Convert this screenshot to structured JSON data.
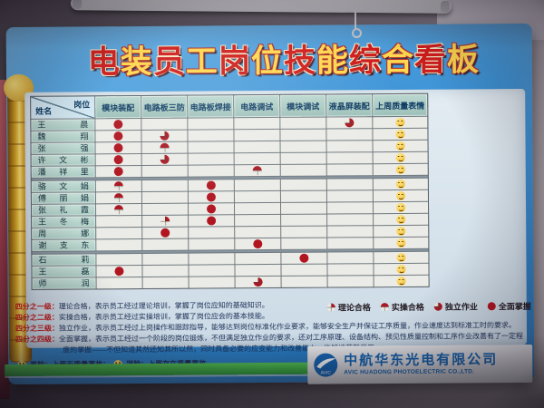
{
  "board": {
    "title": "电装员工岗位技能综合看板",
    "table": {
      "corner": {
        "top": "岗位",
        "bottom": "姓名"
      },
      "columns": [
        "模块装配",
        "电路板三防",
        "电路板焊接",
        "电路调试",
        "模块调试",
        "液晶屏装配",
        "上周质量表情"
      ],
      "rows": [
        {
          "name": "王晨",
          "skills": [
            4,
            0,
            0,
            0,
            0,
            3
          ],
          "mood": "smile"
        },
        {
          "name": "魏翔",
          "skills": [
            4,
            3,
            0,
            0,
            0,
            0
          ],
          "mood": "smile"
        },
        {
          "name": "张强",
          "skills": [
            4,
            2,
            0,
            0,
            0,
            0
          ],
          "mood": "smile"
        },
        {
          "name": "许文彬",
          "skills": [
            4,
            3,
            0,
            0,
            0,
            0
          ],
          "mood": "smile"
        },
        {
          "name": "潘祥里",
          "skills": [
            4,
            0,
            0,
            2,
            0,
            0
          ],
          "mood": "smile"
        },
        {
          "name": "骆文娟",
          "skills": [
            2,
            0,
            4,
            0,
            0,
            0
          ],
          "mood": "smile"
        },
        {
          "name": "傅丽娟",
          "skills": [
            2,
            0,
            4,
            0,
            0,
            0
          ],
          "mood": "smile"
        },
        {
          "name": "张礼霞",
          "skills": [
            2,
            0,
            4,
            0,
            0,
            0
          ],
          "mood": "smile"
        },
        {
          "name": "王冬梅",
          "skills": [
            0,
            1,
            4,
            0,
            0,
            0
          ],
          "mood": "smile"
        },
        {
          "name": "周娜",
          "skills": [
            0,
            4,
            0,
            0,
            0,
            0
          ],
          "mood": "smile"
        },
        {
          "name": "谢支东",
          "skills": [
            0,
            0,
            0,
            4,
            0,
            0
          ],
          "mood": "smile"
        },
        {
          "name": "石莉",
          "skills": [
            0,
            0,
            0,
            0,
            4,
            0
          ],
          "mood": "smile"
        },
        {
          "name": "王磊",
          "skills": [
            4,
            0,
            0,
            0,
            0,
            0
          ],
          "mood": "smile"
        },
        {
          "name": "师润",
          "skills": [
            0,
            0,
            0,
            3,
            0,
            0
          ],
          "mood": "smile"
        }
      ]
    },
    "legend": [
      {
        "level": 1,
        "label": "理论合格"
      },
      {
        "level": 2,
        "label": "实操合格"
      },
      {
        "level": 3,
        "label": "独立作业"
      },
      {
        "level": 4,
        "label": "全面掌握"
      }
    ],
    "notes": [
      {
        "label": "四分之一级：",
        "text": "理论合格，表示员工经过理论培训，掌握了岗位应知的基础知识。"
      },
      {
        "label": "四分之二级：",
        "text": "实操合格，表示员工经过实操培训，掌握了岗位应会的基本技能。"
      },
      {
        "label": "四分之三级：",
        "text": "独立作业，表示员工经过上岗操作和跟踪指导，能够达到岗位标准化作业要求，能够安全生产并保证工序质量，作业速度达到标准工时的要求。"
      },
      {
        "label": "四分之四级：",
        "text": "全面掌握，表示员工经过一个阶段的岗位锻炼，不但满足独立作业的要求，还对工序原理、设备结构、预见性质量控制和工序作业改善有了一定程度的掌握——不但知道其然还知其所以然，同时具备必要的应变能力和改善能力，能够培养新员工。"
      }
    ],
    "mood_note": {
      "smile_label": "笑脸：上周无质量事故；",
      "cry_label": "哭脸：上周存在质量事故"
    },
    "footer": {
      "company_cn": "中航华东光电有限公司",
      "company_en": "AVIC HUADONG PHOTOELECTRIC CO.,LTD.",
      "logo_text": "AVIC"
    }
  },
  "colors": {
    "dot_red": "#b01520",
    "smiley_yellow": "#f0b522",
    "green_strip": "#2f9f3b",
    "board_blue": "#3b92d6",
    "title_red": "#cf1d1d",
    "title_yellow": "#ffd84f",
    "company_blue": "#1566b6"
  }
}
